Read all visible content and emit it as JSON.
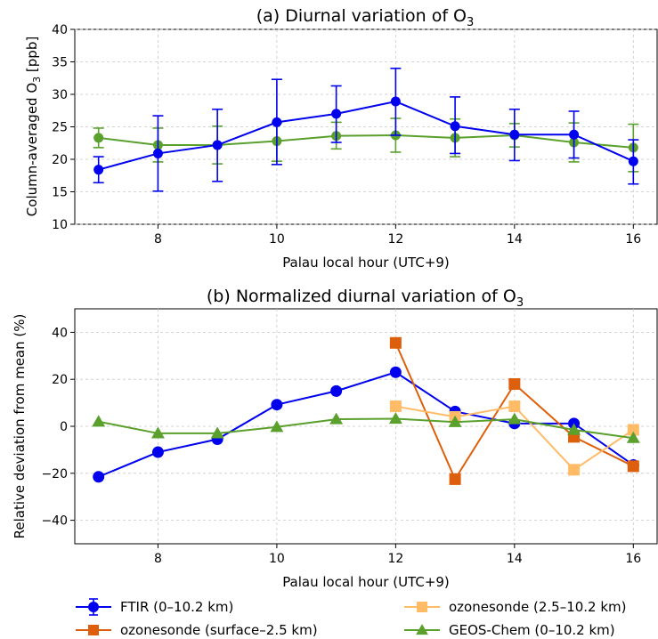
{
  "chart_data": [
    {
      "id": "a",
      "type": "line",
      "title_main": "(a) Diurnal variation of O",
      "title_sub": "3",
      "xlabel": "Palau local hour (UTC+9)",
      "ylabel_main": "Column-averaged O",
      "ylabel_sub": "3",
      "ylabel_unit": " [ppb]",
      "xlim": [
        6.6,
        16.4
      ],
      "ylim": [
        10,
        40
      ],
      "xticks": [
        8,
        10,
        12,
        14,
        16
      ],
      "yticks": [
        10,
        15,
        20,
        25,
        30,
        35,
        40
      ],
      "grid": true,
      "series": [
        {
          "key": "geos",
          "color": "#5aa02c",
          "marker": "circle",
          "x": [
            7,
            8,
            9,
            10,
            11,
            12,
            13,
            14,
            15,
            16
          ],
          "y": [
            23.3,
            22.2,
            22.2,
            22.8,
            23.6,
            23.7,
            23.3,
            23.7,
            22.6,
            21.8
          ],
          "err_low": [
            21.8,
            19.6,
            19.3,
            19.7,
            21.6,
            21.1,
            20.4,
            21.9,
            19.6,
            18.1
          ],
          "err_high": [
            24.8,
            24.8,
            25.1,
            25.6,
            25.7,
            26.3,
            26.2,
            25.5,
            25.6,
            25.4
          ]
        },
        {
          "key": "ftir",
          "color": "#0000ee",
          "marker": "circle",
          "x": [
            7,
            8,
            9,
            10,
            11,
            12,
            13,
            14,
            15,
            16
          ],
          "y": [
            18.4,
            20.9,
            22.2,
            25.7,
            27.0,
            28.9,
            25.1,
            23.8,
            23.8,
            19.7
          ],
          "err_low": [
            16.4,
            15.1,
            16.6,
            19.2,
            22.6,
            23.7,
            20.9,
            19.8,
            20.2,
            16.2
          ],
          "err_high": [
            20.4,
            26.7,
            27.7,
            32.3,
            31.3,
            34.0,
            29.6,
            27.7,
            27.4,
            23.0
          ]
        }
      ]
    },
    {
      "id": "b",
      "type": "line",
      "title_main": "(b) Normalized diurnal variation of O",
      "title_sub": "3",
      "xlabel": "Palau local hour (UTC+9)",
      "ylabel": "Relative deviation from mean (%)",
      "xlim": [
        6.6,
        16.4
      ],
      "ylim": [
        -50,
        50
      ],
      "xticks": [
        8,
        10,
        12,
        14,
        16
      ],
      "yticks": [
        -40,
        -20,
        0,
        20,
        40
      ],
      "grid": true,
      "series": [
        {
          "key": "ftir",
          "color": "#0000ee",
          "marker": "circle",
          "x": [
            7,
            8,
            9,
            10,
            11,
            12,
            13,
            14,
            15,
            16
          ],
          "y": [
            -21.5,
            -11,
            -5.5,
            9.2,
            15,
            23,
            6.3,
            1.2,
            1.2,
            -16.5
          ]
        },
        {
          "key": "sonde_surface",
          "color": "#de5f0b",
          "marker": "square",
          "x": [
            12,
            13,
            14,
            15,
            16
          ],
          "y": [
            35.5,
            -22.5,
            18,
            -4.5,
            -17
          ]
        },
        {
          "key": "sonde_upper",
          "color": "#ffbb66",
          "marker": "square",
          "x": [
            12,
            13,
            14,
            15,
            16
          ],
          "y": [
            8.5,
            4,
            8.5,
            -18.5,
            -1.5
          ]
        },
        {
          "key": "geos",
          "color": "#5aa02c",
          "marker": "triangle",
          "x": [
            7,
            8,
            9,
            10,
            11,
            12,
            13,
            14,
            15,
            16
          ],
          "y": [
            2,
            -3,
            -3,
            -0.3,
            3,
            3.2,
            1.8,
            3,
            -1.5,
            -5
          ]
        }
      ]
    }
  ],
  "legend": [
    {
      "label": "FTIR (0–10.2 km)",
      "color": "#0000ee",
      "marker": "circle",
      "errorbar": true
    },
    {
      "label": "ozonesonde (surface–2.5 km)",
      "color": "#de5f0b",
      "marker": "square",
      "errorbar": false
    },
    {
      "label": "ozonesonde (2.5–10.2 km)",
      "color": "#ffbb66",
      "marker": "square",
      "errorbar": false
    },
    {
      "label": "GEOS-Chem (0–10.2 km)",
      "color": "#5aa02c",
      "marker": "triangle",
      "errorbar": false
    }
  ]
}
